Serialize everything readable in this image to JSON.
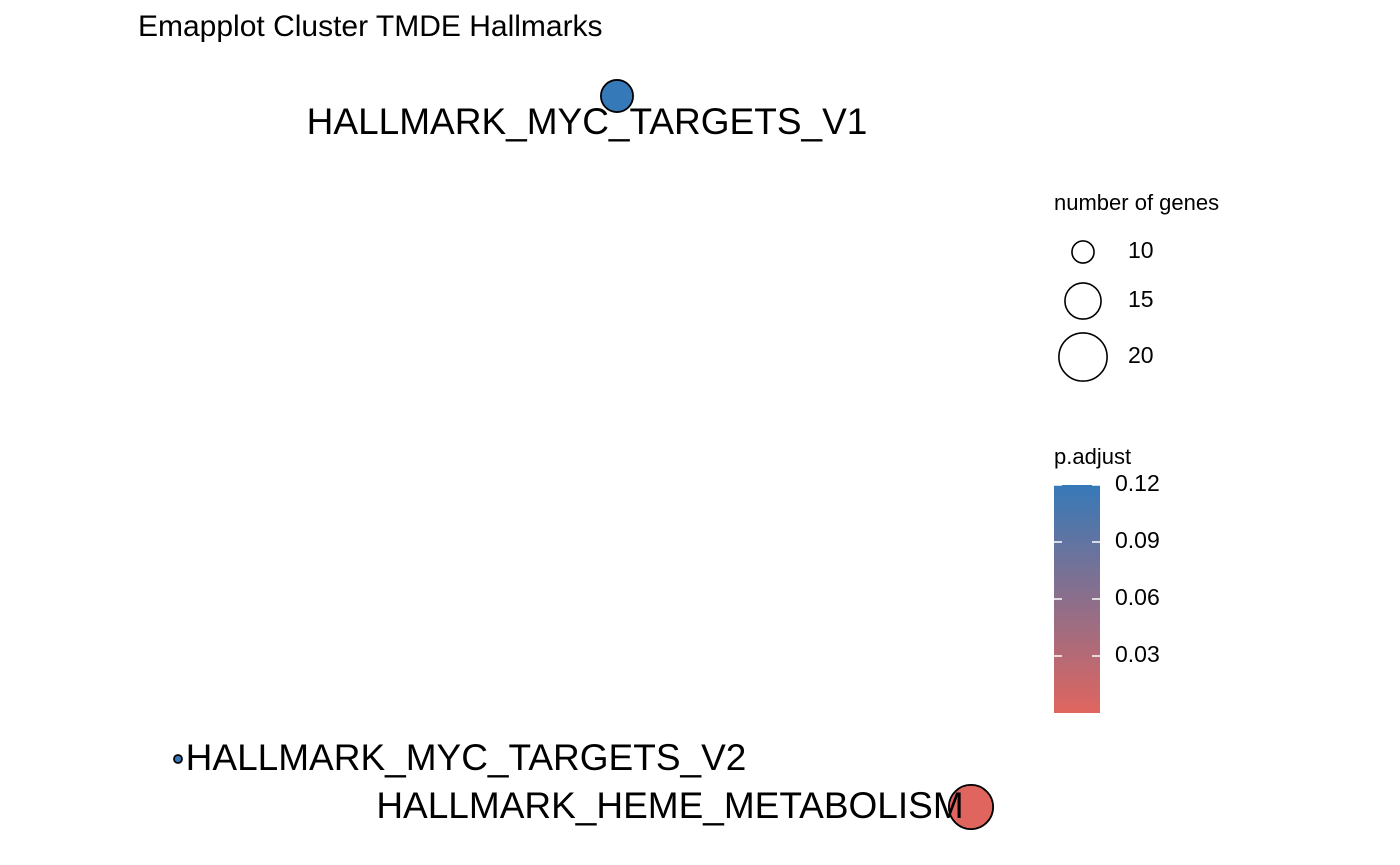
{
  "title": "Emapplot Cluster TMDE Hallmarks",
  "chart_data": {
    "type": "scatter",
    "title": "Emapplot Cluster TMDE Hallmarks",
    "nodes": [
      {
        "label": "HALLMARK_MYC_TARGETS_V1",
        "genes": 15,
        "p_adjust": 0.12,
        "color": "#3679B8"
      },
      {
        "label": "HALLMARK_MYC_TARGETS_V2",
        "genes": 5,
        "p_adjust": 0.12,
        "color": "#3679B8"
      },
      {
        "label": "HALLMARK_HEME_METABOLISM",
        "genes": 20,
        "p_adjust": 0.0,
        "color": "#E0655F"
      }
    ],
    "legend_size": {
      "title": "number of genes",
      "values": [
        10,
        15,
        20
      ],
      "labels": [
        "10",
        "15",
        "20"
      ]
    },
    "legend_color": {
      "title": "p.adjust",
      "ticks": [
        "0.12",
        "0.09",
        "0.06",
        "0.03"
      ],
      "low_color": "#E0655F",
      "high_color": "#3679B8",
      "range": [
        0.0,
        0.12
      ]
    }
  }
}
